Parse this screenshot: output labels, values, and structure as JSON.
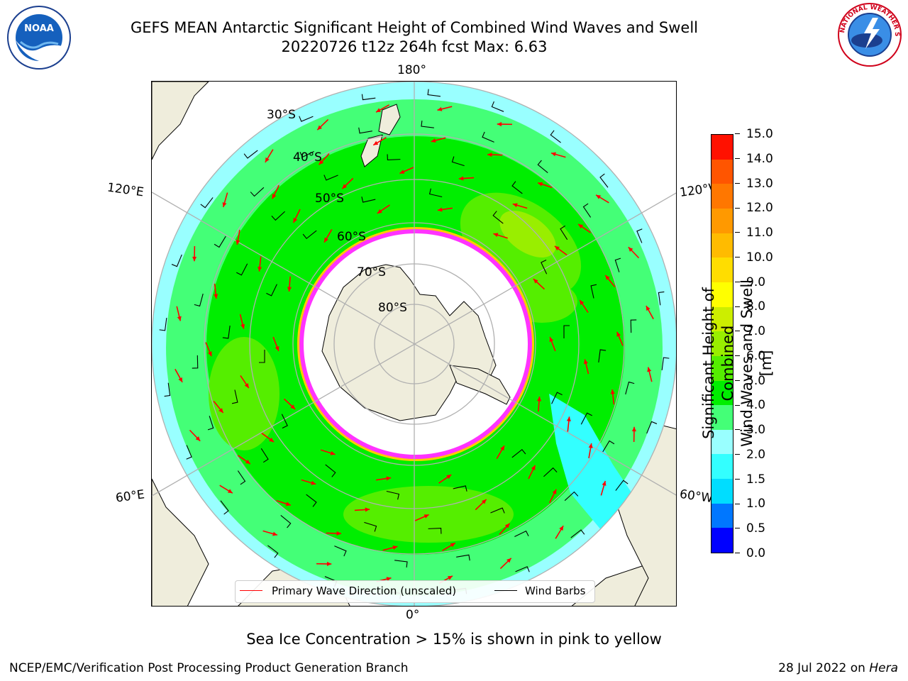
{
  "header": {
    "title_line1": "GEFS MEAN Antarctic Significant Height of Combined Wind Waves and Swell",
    "title_line2": "20220726 t12z 264h fcst   Max: 6.63"
  },
  "logos": {
    "left": "noaa-logo",
    "right": "nws-logo",
    "left_text": "NOAA",
    "right_text": "NATIONAL WEATHER SERVICE"
  },
  "map": {
    "projection": "south-polar-stereographic",
    "longitude_labels": {
      "top": "180°",
      "bottom": "0°",
      "upper_left": "120°E",
      "lower_left": "60°E",
      "upper_right": "120°W",
      "lower_right": "60°W"
    },
    "latitude_labels": [
      "30°S",
      "40°S",
      "50°S",
      "60°S",
      "70°S",
      "80°S"
    ],
    "colors": {
      "land": "#efeddc",
      "ice": "#ffffff",
      "ice_edge_pink": "#ff33ff",
      "ice_edge_yellow": "#ffcc00",
      "grid": "#b0b0b0",
      "arrow": "#ff0000",
      "barb": "#000000"
    }
  },
  "legend": {
    "wave_direction": "Primary Wave Direction (unscaled)",
    "wind_barbs": "Wind Barbs"
  },
  "colorbar": {
    "label_line1": "Significant Height of Combined",
    "label_line2": "Wind Waves and Swell [m]",
    "tick_labels": [
      "0.0",
      "0.5",
      "1.0",
      "1.5",
      "2.0",
      "3.0",
      "4.0",
      "5.0",
      "6.0",
      "7.0",
      "8.0",
      "9.0",
      "10.0",
      "11.0",
      "12.0",
      "13.0",
      "14.0",
      "15.0"
    ],
    "colors": [
      "#0000ff",
      "#0077ff",
      "#00ddff",
      "#33ffff",
      "#99ffff",
      "#44ff77",
      "#00ee00",
      "#55ee00",
      "#99ee00",
      "#ccee00",
      "#ffff00",
      "#ffdd00",
      "#ffbb00",
      "#ff9900",
      "#ff7700",
      "#ff5500",
      "#ff1100"
    ]
  },
  "notes": {
    "sea_ice": "Sea Ice Concentration > 15% is shown in pink to yellow"
  },
  "footer": {
    "left": "NCEP/EMC/Verification Post Processing Product Generation Branch",
    "date": "28 Jul 2022 on",
    "host": "Hera"
  }
}
